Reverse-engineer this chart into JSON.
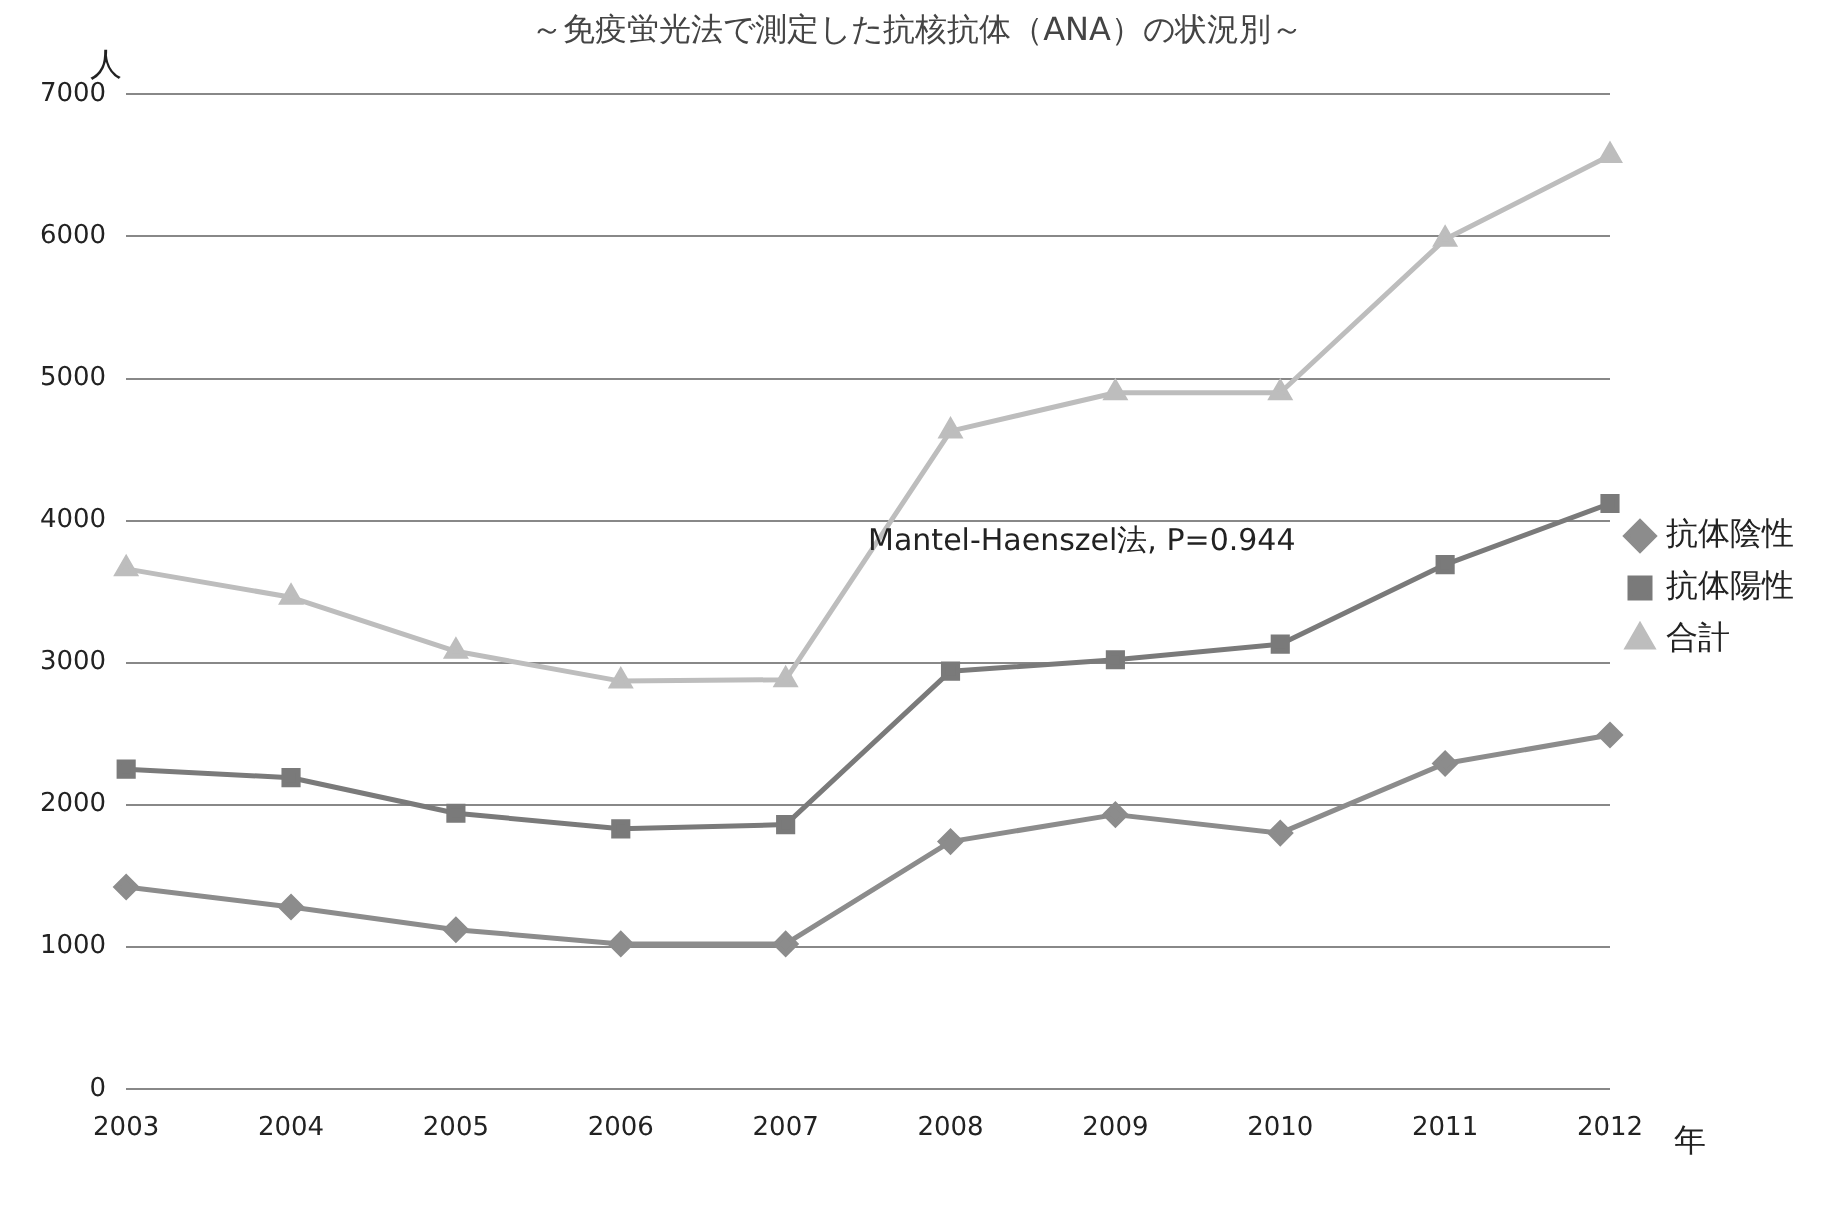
{
  "chart_data": {
    "type": "line",
    "title": "～免疫蛍光法で測定した抗核抗体（ANA）の状況別～",
    "ylabel": "人",
    "xlabel": "年",
    "categories": [
      "2003",
      "2004",
      "2005",
      "2006",
      "2007",
      "2008",
      "2009",
      "2010",
      "2011",
      "2012"
    ],
    "series": [
      {
        "name": "抗体陰性",
        "color": "#8c8c8c",
        "marker": "diamond",
        "values": [
          1420,
          1280,
          1120,
          1020,
          1020,
          1740,
          1930,
          1800,
          2290,
          2490
        ]
      },
      {
        "name": "抗体陽性",
        "color": "#7a7a7a",
        "marker": "square",
        "values": [
          2250,
          2190,
          1940,
          1830,
          1860,
          2940,
          3020,
          3130,
          3690,
          4120
        ]
      },
      {
        "name": "合計",
        "color": "#bdbdbd",
        "marker": "triangle",
        "values": [
          3660,
          3460,
          3080,
          2870,
          2880,
          4630,
          4900,
          4900,
          5980,
          6570
        ]
      }
    ],
    "ylim": [
      0,
      7000
    ],
    "yticks": [
      0,
      1000,
      2000,
      3000,
      4000,
      5000,
      6000,
      7000
    ],
    "grid": "y",
    "legend": "right",
    "line_style": "solid",
    "annotations": [
      "Mantel-Haenszel法, P=0.944"
    ]
  }
}
